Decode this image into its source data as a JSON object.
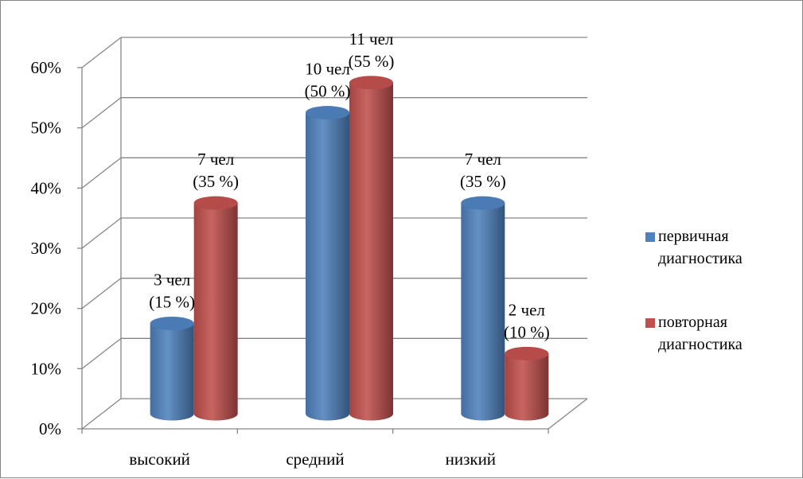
{
  "chart_data": {
    "type": "bar",
    "categories": [
      "высокий",
      "средний",
      "низкий"
    ],
    "series": [
      {
        "name": "первичная диагностика",
        "legend_lines": [
          "первичная",
          "диагностика"
        ],
        "color": "#4F81BD",
        "values": [
          15,
          50,
          35
        ],
        "labels": [
          [
            "3 чел",
            "(15 %)"
          ],
          [
            "10 чел",
            "(50 %)"
          ],
          [
            "7 чел",
            "(35 %)"
          ]
        ]
      },
      {
        "name": "повторная диагностика",
        "legend_lines": [
          "повторная",
          "диагностика"
        ],
        "color": "#C0504D",
        "values": [
          35,
          55,
          10
        ],
        "labels": [
          [
            "7 чел",
            "(35 %)"
          ],
          [
            "11 чел",
            "(55 %)"
          ],
          [
            "2 чел",
            "(10 %)"
          ]
        ]
      }
    ],
    "y_ticks": [
      "0%",
      "10%",
      "20%",
      "30%",
      "40%",
      "50%",
      "60%"
    ],
    "ylim": [
      0,
      60
    ],
    "y_unit": "%",
    "grid": true,
    "legend_position": "right",
    "style": "3d-cylinder"
  }
}
